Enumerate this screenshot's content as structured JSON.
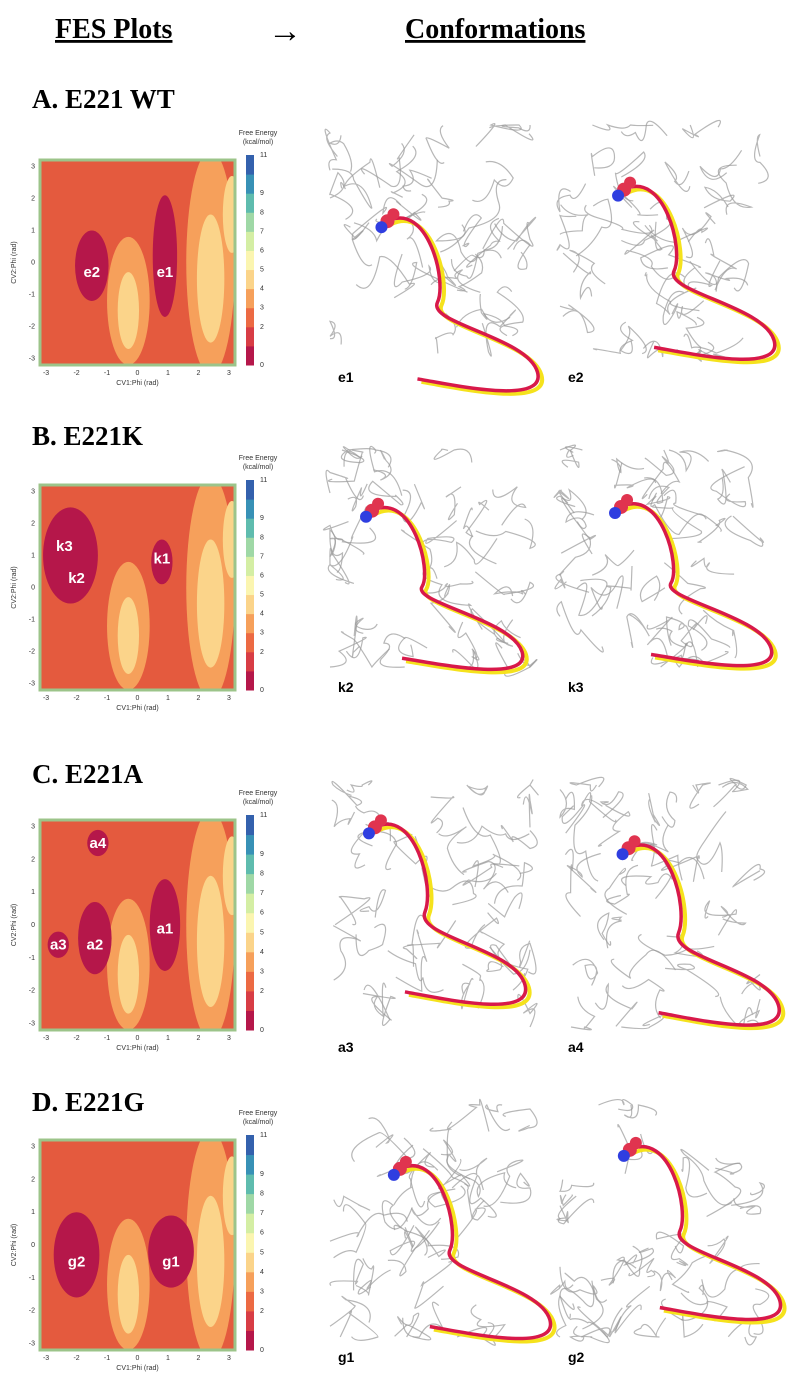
{
  "header": {
    "left": "FES Plots",
    "arrow": "→",
    "right": "Conformations"
  },
  "plot_axes": {
    "x_label": "CV1:Phi (rad)",
    "y_label": "CV2:Phi (rad)",
    "ticks": [
      "-3",
      "-2",
      "-1",
      "0",
      "1",
      "2",
      "3"
    ],
    "colorbar_title": [
      "Free Energy",
      "(kcal/mol)"
    ],
    "colorbar_ticks": [
      "0",
      "2",
      "3",
      "4",
      "5",
      "6",
      "7",
      "8",
      "9",
      "11"
    ]
  },
  "panels": [
    {
      "title": "A.  E221 WT",
      "basins": [
        "e2",
        "e1"
      ],
      "conformations": [
        "e1",
        "e2"
      ]
    },
    {
      "title": "B.  E221K",
      "basins": [
        "k3",
        "k2",
        "k1"
      ],
      "conformations": [
        "k2",
        "k3"
      ]
    },
    {
      "title": "C.  E221A",
      "basins": [
        "a4",
        "a3",
        "a2",
        "a1"
      ],
      "conformations": [
        "a3",
        "a4"
      ]
    },
    {
      "title": "D.  E221G",
      "basins": [
        "g2",
        "g1"
      ],
      "conformations": [
        "g1",
        "g2"
      ]
    }
  ]
}
